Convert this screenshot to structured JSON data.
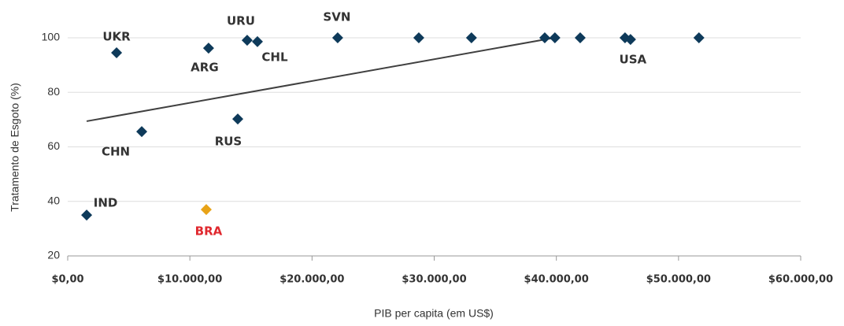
{
  "chart_data": {
    "type": "scatter",
    "x_label": "PIB per capita (em US$)",
    "y_label": "Tratamento de Esgoto (%)",
    "x": [
      1550,
      11340,
      6060,
      4000,
      11530,
      13920,
      14690,
      15530,
      22100,
      28740,
      33050,
      39050,
      39880,
      41950,
      45620,
      46070,
      51670
    ],
    "values": [
      35,
      37,
      65.6,
      94.5,
      96.2,
      70.2,
      99.1,
      98.6,
      100,
      100,
      100,
      100,
      100,
      100,
      100,
      99.4,
      100
    ],
    "labels": [
      "IND",
      "BRA",
      "CHN",
      "UKR",
      "ARG",
      "RUS",
      "URU",
      "CHL",
      "SVN",
      null,
      null,
      null,
      null,
      null,
      null,
      "USA",
      null
    ],
    "colors": [
      "#0e3a5a",
      "#e8a317",
      "#0e3a5a",
      "#0e3a5a",
      "#0e3a5a",
      "#0e3a5a",
      "#0e3a5a",
      "#0e3a5a",
      "#0e3a5a",
      "#0e3a5a",
      "#0e3a5a",
      "#0e3a5a",
      "#0e3a5a",
      "#0e3a5a",
      "#0e3a5a",
      "#0e3a5a",
      "#0e3a5a"
    ],
    "label_colors": [
      "#333333",
      "#e0282e",
      "#333333",
      "#333333",
      "#333333",
      "#333333",
      "#333333",
      "#333333",
      "#333333",
      null,
      null,
      null,
      null,
      null,
      null,
      "#333333",
      null
    ],
    "trendline": {
      "x": [
        1550,
        40200
      ],
      "y": [
        69.4,
        100.3
      ],
      "color": "#404040"
    },
    "xlim": [
      0,
      60000
    ],
    "ylim": [
      20,
      100
    ],
    "xticks": [
      {
        "value": 0,
        "label": "$0,00"
      },
      {
        "value": 10000,
        "label": "$10.000,00"
      },
      {
        "value": 20000,
        "label": "$20.000,00"
      },
      {
        "value": 30000,
        "label": "$30.000,00"
      },
      {
        "value": 40000,
        "label": "$40.000,00"
      },
      {
        "value": 50000,
        "label": "$50.000,00"
      },
      {
        "value": 60000,
        "label": "$60.000,00"
      }
    ],
    "yticks": [
      20,
      40,
      60,
      80,
      100
    ],
    "grid": true
  }
}
